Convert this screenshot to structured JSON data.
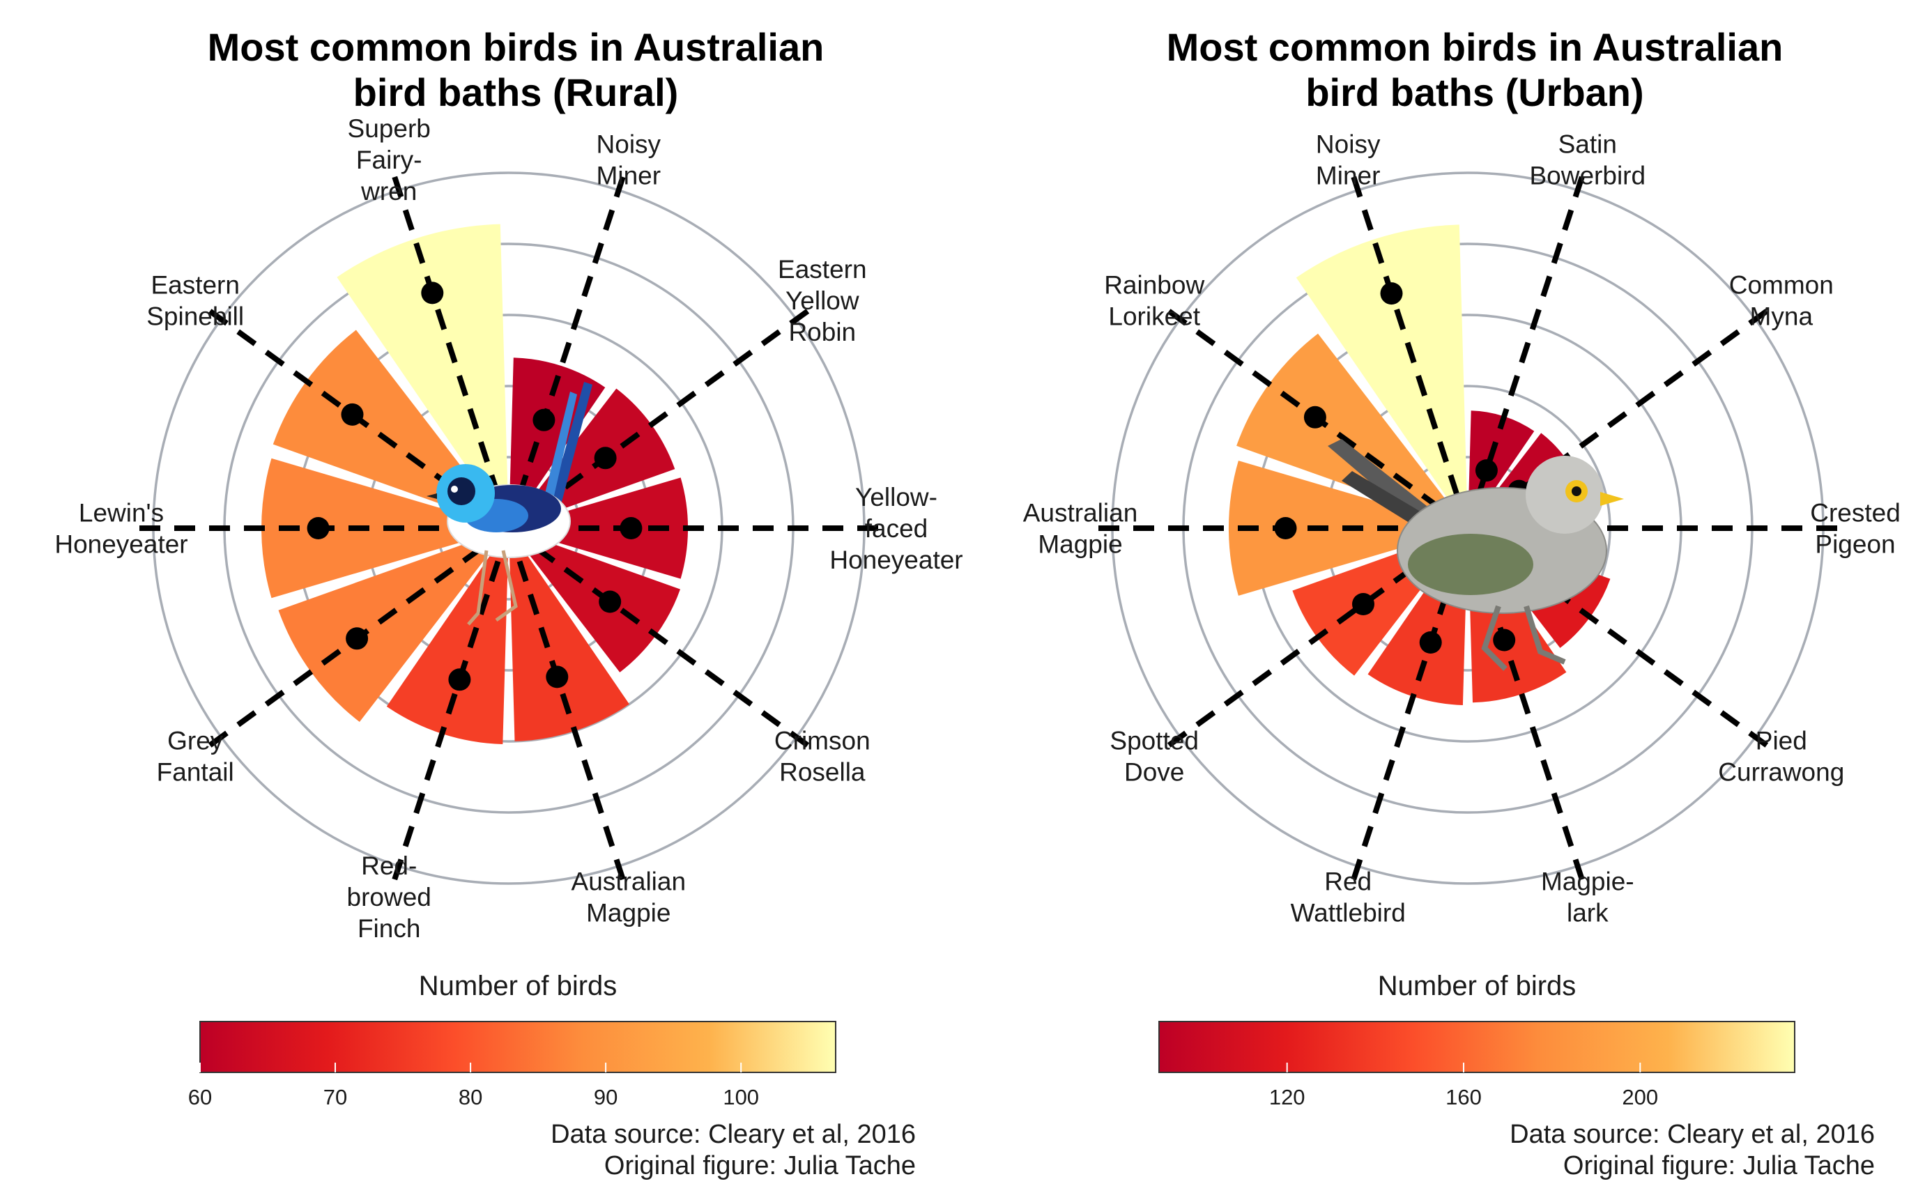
{
  "colors": {
    "grid": "#a8adb5",
    "palette_low": "#bd0026",
    "palette_high": "#ffffb2",
    "needle": "#000000",
    "legend_border": "#333333",
    "fairywren_blue": "#2f7fd8",
    "miner_grey": "#9a9a96"
  },
  "chart_data": [
    {
      "type": "bar",
      "subtype": "polar",
      "title": "Most common birds in Australian bird baths (Rural)",
      "title_lines": [
        "Most common birds in Australian",
        "bird baths (Rural)"
      ],
      "categories": [
        "Noisy Miner",
        "Eastern Yellow Robin",
        "Yellow-faced Honeyeater",
        "Crimson Rosella",
        "Australian Magpie",
        "Red-browed Finch",
        "Grey Fantail",
        "Lewin's Honeyeater",
        "Eastern Spinebill",
        "Superb Fairy-wren"
      ],
      "category_label_lines": [
        [
          "Noisy",
          "Miner"
        ],
        [
          "Eastern",
          "Yellow",
          "Robin"
        ],
        [
          "Yellow-",
          "faced",
          "Honeyeater"
        ],
        [
          "Crimson",
          "Rosella"
        ],
        [
          "Australian",
          "Magpie"
        ],
        [
          "Red-",
          "browed",
          "Finch"
        ],
        [
          "Grey",
          "Fantail"
        ],
        [
          "Lewin's",
          "Honeyeater"
        ],
        [
          "Eastern",
          "Spinebill"
        ],
        [
          "Superb",
          "Fairy-",
          "wren"
        ]
      ],
      "values": [
        60,
        62,
        63,
        64,
        75,
        76,
        86,
        87,
        88,
        107
      ],
      "rlim": [
        0,
        125
      ],
      "grid_rings": [
        25,
        50,
        75,
        100,
        125
      ],
      "legend": {
        "title": "Number of birds",
        "ticks": [
          60,
          70,
          80,
          90,
          100
        ],
        "range": [
          60,
          107
        ],
        "position": "bottom"
      },
      "bird_image": "superb-fairy-wren",
      "caption_lines": [
        "Data source: Cleary et al, 2016",
        "Original figure: Julia Tache"
      ]
    },
    {
      "type": "bar",
      "subtype": "polar",
      "title": "Most common birds in Australian bird baths (Urban)",
      "title_lines": [
        "Most common birds in Australian",
        "bird baths (Urban)"
      ],
      "categories": [
        "Satin Bowerbird",
        "Common Myna",
        "Crested Pigeon",
        "Pied Currawong",
        "Magpie-lark",
        "Red Wattlebird",
        "Spotted Dove",
        "Australian Magpie",
        "Rainbow Lorikeet",
        "Noisy Miner"
      ],
      "category_label_lines": [
        [
          "Satin",
          "Bowerbird"
        ],
        [
          "Common",
          "Myna"
        ],
        [
          "Crested",
          "Pigeon"
        ],
        [
          "Pied",
          "Currawong"
        ],
        [
          "Magpie-",
          "lark"
        ],
        [
          "Red",
          "Wattlebird"
        ],
        [
          "Spotted",
          "Dove"
        ],
        [
          "Australian",
          "Magpie"
        ],
        [
          "Rainbow",
          "Lorikeet"
        ],
        [
          "Noisy",
          "Miner"
        ]
      ],
      "values": [
        91,
        93,
        95,
        117,
        135,
        137,
        144,
        185,
        190,
        235
      ],
      "rlim": [
        0,
        275
      ],
      "grid_rings": [
        55,
        110,
        165,
        220,
        275
      ],
      "legend": {
        "title": "Number of birds",
        "ticks": [
          120,
          160,
          200
        ],
        "range": [
          91,
          235
        ],
        "position": "bottom"
      },
      "bird_image": "noisy-miner",
      "caption_lines": [
        "Data source: Cleary et al, 2016",
        "Original figure: Julia Tache"
      ]
    }
  ]
}
